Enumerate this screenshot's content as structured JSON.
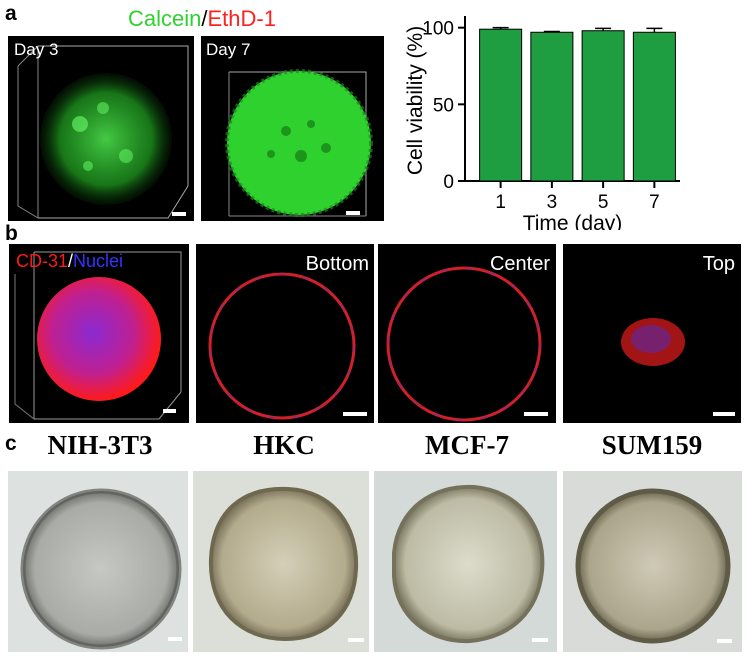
{
  "panel_a": {
    "label": "a",
    "legend_title_green": "Calcein",
    "legend_sep": "/",
    "legend_title_red": "EthD-1",
    "images": [
      {
        "label": "Day 3"
      },
      {
        "label": "Day 7"
      }
    ],
    "colors": {
      "green_stain": "#2fd12f",
      "bar_fill": "#1e9e41",
      "red_stain": "#ff2020"
    }
  },
  "chart_data": {
    "type": "bar",
    "categories": [
      "1",
      "3",
      "5",
      "7"
    ],
    "values": [
      99,
      97,
      98,
      97
    ],
    "errors": [
      1,
      0.5,
      1.5,
      2.5
    ],
    "xlabel": "Time (day)",
    "ylabel": "Cell viability (%)",
    "ylim": [
      0,
      105
    ],
    "yticks": [
      "0",
      "50",
      "100"
    ],
    "bar_color": "#1e9e41",
    "grid": false
  },
  "panel_b": {
    "label": "b",
    "legend_red": "CD-31",
    "legend_sep": "/",
    "legend_blue": "Nuclei",
    "slices": [
      {
        "label": "Bottom"
      },
      {
        "label": "Center"
      },
      {
        "label": "Top"
      }
    ],
    "colors": {
      "red": "#ff1a1a",
      "blue": "#3333ff",
      "magenta": "#c02090"
    }
  },
  "panel_c": {
    "label": "c",
    "cells": [
      {
        "name": "NIH-3T3"
      },
      {
        "name": "HKC"
      },
      {
        "name": "MCF-7"
      },
      {
        "name": "SUM159"
      }
    ]
  }
}
